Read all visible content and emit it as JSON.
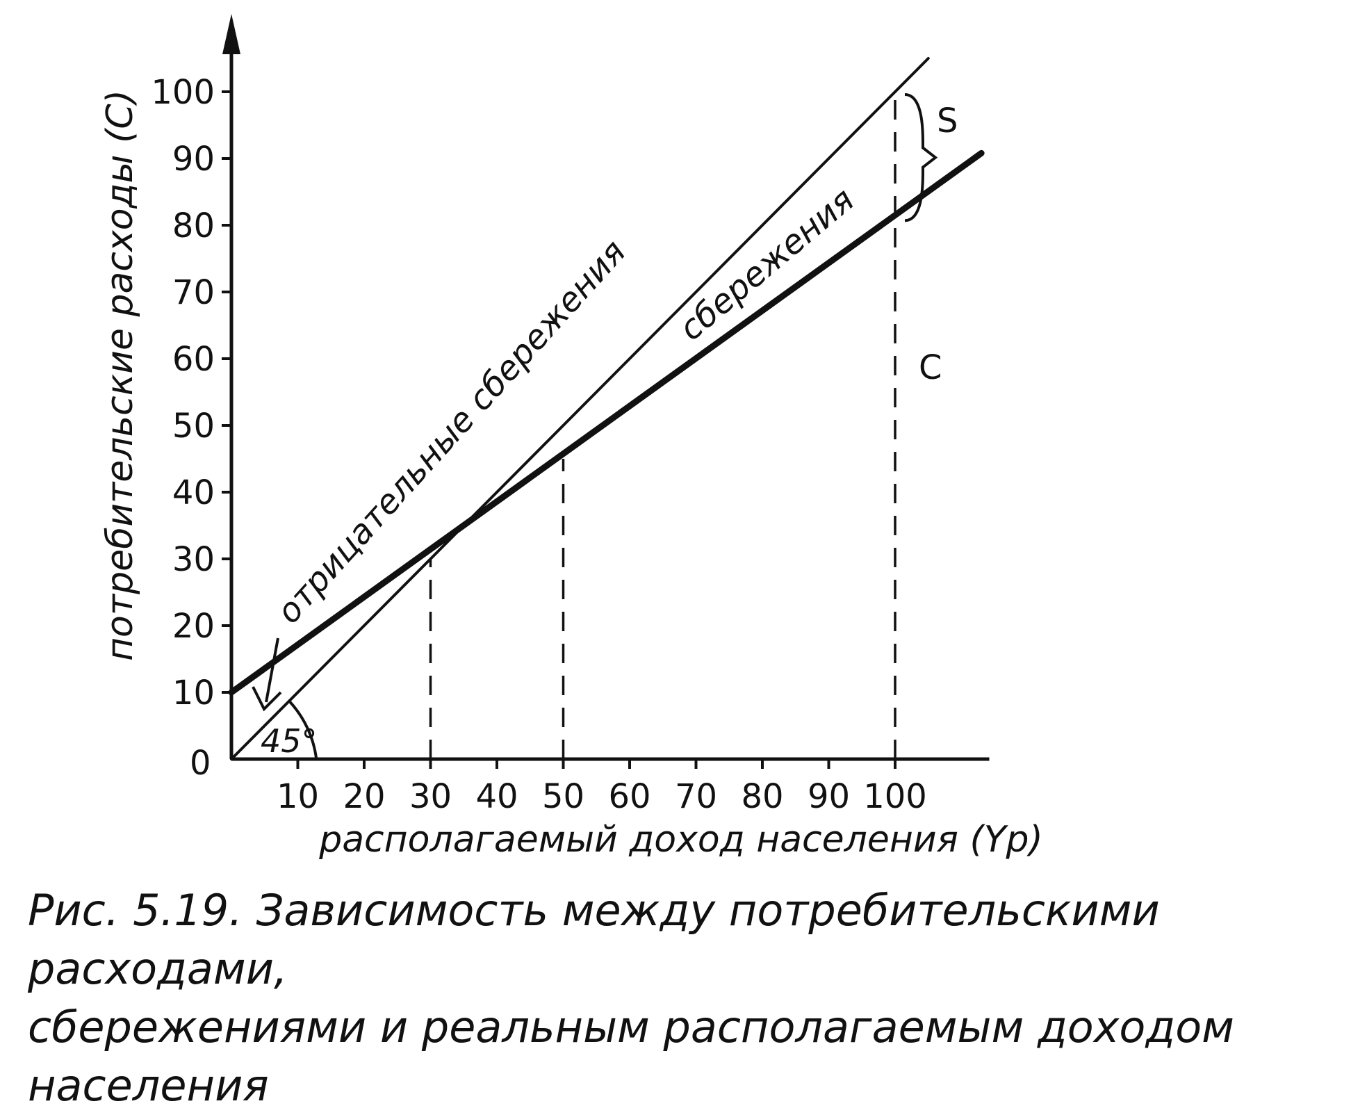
{
  "chart_data": {
    "type": "line",
    "title": "",
    "xlabel": "располагаемый доход населения (Yp)",
    "ylabel": "потребительские расходы (C)",
    "origin_label": "0",
    "xlim": [
      0,
      110
    ],
    "ylim": [
      0,
      110
    ],
    "xticks": [
      10,
      20,
      30,
      40,
      50,
      60,
      70,
      80,
      90,
      100
    ],
    "yticks": [
      10,
      20,
      30,
      40,
      50,
      60,
      70,
      80,
      90,
      100
    ],
    "grid": false,
    "series": [
      {
        "name": "",
        "style": "thin",
        "x": [
          0,
          105
        ],
        "y": [
          0,
          105
        ]
      },
      {
        "name": "",
        "style": "thick",
        "x": [
          0,
          113
        ],
        "y": [
          10,
          90.8
        ]
      }
    ],
    "reference_lines": [
      {
        "x": 30,
        "y_top": 30
      },
      {
        "x": 50,
        "y_top": 45
      },
      {
        "x": 100,
        "y_top": 100
      }
    ],
    "annotations": {
      "angle": "45°",
      "negative_savings": "отрицательные сбережения",
      "savings": "сбережения",
      "S": "S",
      "C": "C"
    }
  },
  "caption": {
    "line1": "Рис. 5.19. Зависимость между потребительскими расходами,",
    "line2": "сбережениями и реальным располагаемым доходом населения"
  }
}
